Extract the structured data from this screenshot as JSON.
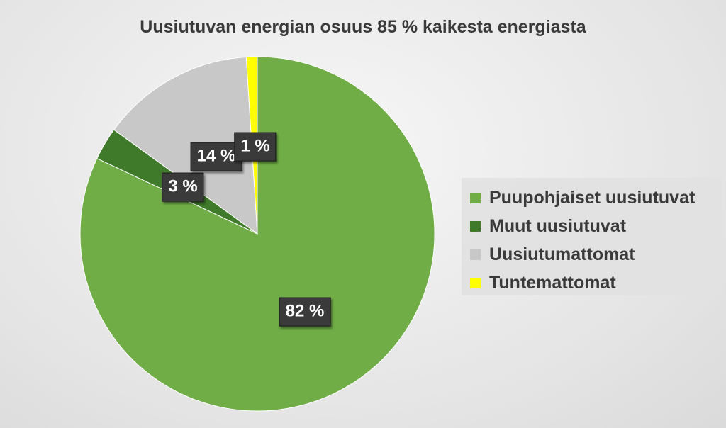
{
  "chart_data": {
    "type": "pie",
    "title": "Uusiutuvan energian osuus 85 % kaikesta energiasta",
    "categories": [
      "Puupohjaiset uusiutuvat",
      "Muut uusiutuvat",
      "Uusiutumattomat",
      "Tuntemattomat"
    ],
    "values": [
      82,
      3,
      14,
      1
    ],
    "data_labels": [
      "82 %",
      "3 %",
      "14 %",
      "1 %"
    ],
    "colors": [
      "#70ad47",
      "#3f7a2a",
      "#c8c8c8",
      "#ffff00"
    ],
    "legend_position": "right",
    "start_angle": "top",
    "direction": "clockwise"
  }
}
